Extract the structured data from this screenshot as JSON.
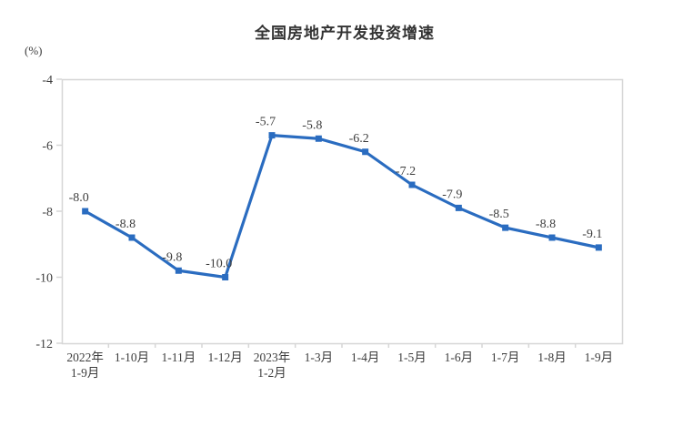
{
  "chart_data": {
    "type": "line",
    "title": "全国房地产开发投资增速",
    "ylabel": "(%)",
    "xlabel": "",
    "categories": [
      "2022年\n1-9月",
      "1-10月",
      "1-11月",
      "1-12月",
      "2023年\n1-2月",
      "1-3月",
      "1-4月",
      "1-5月",
      "1-6月",
      "1-7月",
      "1-8月",
      "1-9月"
    ],
    "values": [
      -8.0,
      -8.8,
      -9.8,
      -10.0,
      -5.7,
      -5.8,
      -6.2,
      -7.2,
      -7.9,
      -8.5,
      -8.8,
      -9.1
    ],
    "data_labels": [
      "-8.0",
      "-8.8",
      "-9.8",
      "-10.0",
      "-5.7",
      "-5.8",
      "-6.2",
      "-7.2",
      "-7.9",
      "-8.5",
      "-8.8",
      "-9.1"
    ],
    "yticks": [
      -4,
      -6,
      -8,
      -10,
      -12
    ],
    "ylim": [
      -12,
      -4
    ],
    "grid": false,
    "legend": "none",
    "marker": "square",
    "line_color": "#2a6cc0",
    "axis_color": "#d6d6d6",
    "label_color": "#3d3d3d",
    "title_color": "#333333"
  }
}
